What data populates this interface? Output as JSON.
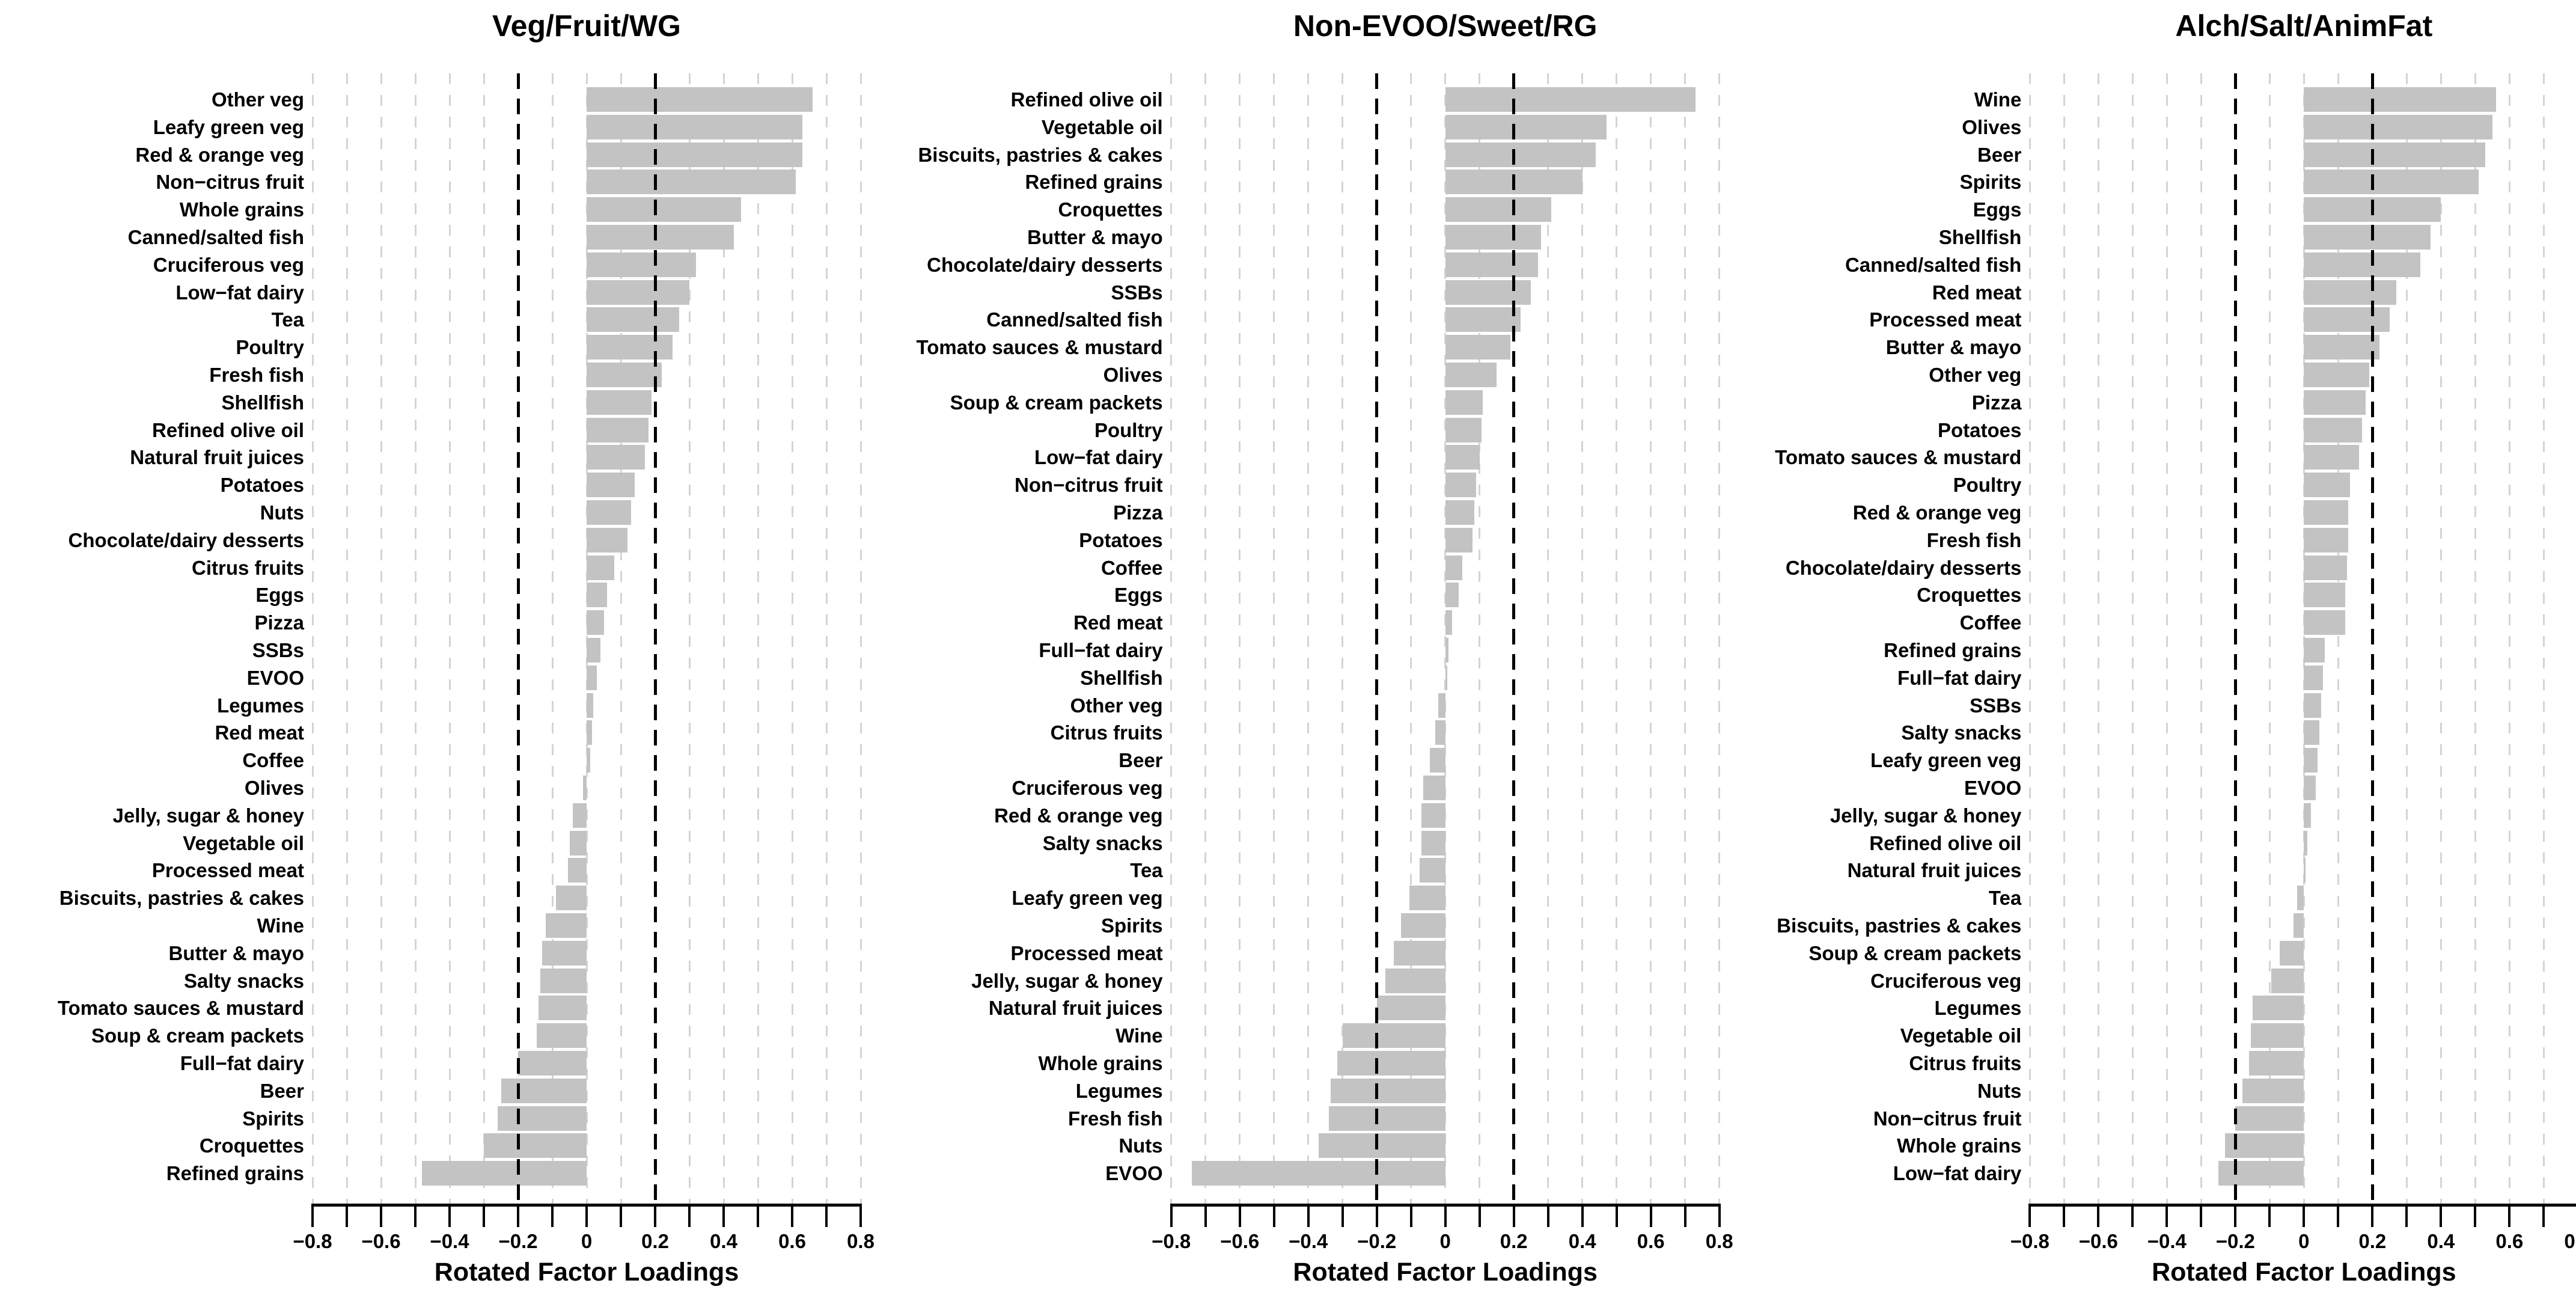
{
  "figure": {
    "xlabel": "Rotated Factor Loadings",
    "background_color": "#ffffff",
    "bar_color": "#c3c3c3",
    "gridline_color": "#d4d4d4",
    "reference_line_color": "#000000",
    "axis_color": "#000000",
    "text_color": "#000000"
  },
  "axis": {
    "min": -0.8,
    "max": 0.8,
    "minor_tick_step": 0.1,
    "major_tick_values": [
      -0.8,
      -0.6,
      -0.4,
      -0.2,
      0,
      0.2,
      0.4,
      0.6,
      0.8
    ],
    "major_tick_labels": [
      "−0.8",
      "−0.6",
      "−0.4",
      "−0.2",
      "0",
      "0.2",
      "0.4",
      "0.6",
      "0.8"
    ],
    "reference_lines": [
      -0.2,
      0.2
    ],
    "grid": true
  },
  "chart_data": [
    {
      "type": "bar",
      "orientation": "horizontal",
      "title": "Veg/Fruit/WG",
      "xlabel": "Rotated Factor Loadings",
      "xlim": [
        -0.8,
        0.8
      ],
      "categories": [
        "Other veg",
        "Leafy green veg",
        "Red & orange veg",
        "Non−citrus fruit",
        "Whole grains",
        "Canned/salted fish",
        "Cruciferous veg",
        "Low−fat dairy",
        "Tea",
        "Poultry",
        "Fresh fish",
        "Shellfish",
        "Refined olive oil",
        "Natural fruit juices",
        "Potatoes",
        "Nuts",
        "Chocolate/dairy desserts",
        "Citrus fruits",
        "Eggs",
        "Pizza",
        "SSBs",
        "EVOO",
        "Legumes",
        "Red meat",
        "Coffee",
        "Olives",
        "Jelly, sugar & honey",
        "Vegetable oil",
        "Processed meat",
        "Biscuits, pastries & cakes",
        "Wine",
        "Butter & mayo",
        "Salty snacks",
        "Tomato sauces & mustard",
        "Soup & cream packets",
        "Full−fat dairy",
        "Beer",
        "Spirits",
        "Croquettes",
        "Refined grains"
      ],
      "values": [
        0.66,
        0.63,
        0.63,
        0.61,
        0.45,
        0.43,
        0.32,
        0.3,
        0.27,
        0.25,
        0.22,
        0.19,
        0.18,
        0.17,
        0.14,
        0.13,
        0.12,
        0.08,
        0.06,
        0.05,
        0.04,
        0.03,
        0.02,
        0.015,
        0.01,
        -0.01,
        -0.04,
        -0.05,
        -0.055,
        -0.09,
        -0.12,
        -0.13,
        -0.135,
        -0.14,
        -0.145,
        -0.2,
        -0.25,
        -0.26,
        -0.3,
        -0.48
      ]
    },
    {
      "type": "bar",
      "orientation": "horizontal",
      "title": "Non-EVOO/Sweet/RG",
      "xlabel": "Rotated Factor Loadings",
      "xlim": [
        -0.8,
        0.8
      ],
      "categories": [
        "Refined olive oil",
        "Vegetable oil",
        "Biscuits, pastries & cakes",
        "Refined grains",
        "Croquettes",
        "Butter & mayo",
        "Chocolate/dairy desserts",
        "SSBs",
        "Canned/salted fish",
        "Tomato sauces & mustard",
        "Olives",
        "Soup & cream packets",
        "Poultry",
        "Low−fat dairy",
        "Non−citrus fruit",
        "Pizza",
        "Potatoes",
        "Coffee",
        "Eggs",
        "Red meat",
        "Full−fat dairy",
        "Shellfish",
        "Other veg",
        "Citrus fruits",
        "Beer",
        "Cruciferous veg",
        "Red & orange veg",
        "Salty snacks",
        "Tea",
        "Leafy green veg",
        "Spirits",
        "Processed meat",
        "Jelly, sugar & honey",
        "Natural fruit juices",
        "Wine",
        "Whole grains",
        "Legumes",
        "Fresh fish",
        "Nuts",
        "EVOO"
      ],
      "values": [
        0.73,
        0.47,
        0.44,
        0.4,
        0.31,
        0.28,
        0.27,
        0.25,
        0.22,
        0.19,
        0.15,
        0.11,
        0.105,
        0.1,
        0.09,
        0.085,
        0.08,
        0.05,
        0.04,
        0.02,
        0.01,
        0.005,
        -0.02,
        -0.03,
        -0.045,
        -0.065,
        -0.07,
        -0.07,
        -0.075,
        -0.105,
        -0.13,
        -0.15,
        -0.175,
        -0.2,
        -0.3,
        -0.315,
        -0.335,
        -0.34,
        -0.37,
        -0.74
      ]
    },
    {
      "type": "bar",
      "orientation": "horizontal",
      "title": "Alch/Salt/AnimFat",
      "xlabel": "Rotated Factor Loadings",
      "xlim": [
        -0.8,
        0.8
      ],
      "categories": [
        "Wine",
        "Olives",
        "Beer",
        "Spirits",
        "Eggs",
        "Shellfish",
        "Canned/salted fish",
        "Red meat",
        "Processed meat",
        "Butter & mayo",
        "Other veg",
        "Pizza",
        "Potatoes",
        "Tomato sauces & mustard",
        "Poultry",
        "Red & orange veg",
        "Fresh fish",
        "Chocolate/dairy desserts",
        "Croquettes",
        "Coffee",
        "Refined grains",
        "Full−fat dairy",
        "SSBs",
        "Salty snacks",
        "Leafy green veg",
        "EVOO",
        "Jelly, sugar & honey",
        "Refined olive oil",
        "Natural fruit juices",
        "Tea",
        "Biscuits, pastries & cakes",
        "Soup & cream packets",
        "Cruciferous veg",
        "Legumes",
        "Vegetable oil",
        "Citrus fruits",
        "Nuts",
        "Non−citrus fruit",
        "Whole grains",
        "Low−fat dairy"
      ],
      "values": [
        0.56,
        0.55,
        0.53,
        0.51,
        0.4,
        0.37,
        0.34,
        0.27,
        0.25,
        0.22,
        0.19,
        0.18,
        0.17,
        0.16,
        0.135,
        0.13,
        0.13,
        0.125,
        0.12,
        0.12,
        0.06,
        0.055,
        0.05,
        0.045,
        0.04,
        0.035,
        0.02,
        0.01,
        0.005,
        -0.02,
        -0.03,
        -0.07,
        -0.095,
        -0.15,
        -0.155,
        -0.16,
        -0.18,
        -0.2,
        -0.23,
        -0.25
      ]
    }
  ]
}
